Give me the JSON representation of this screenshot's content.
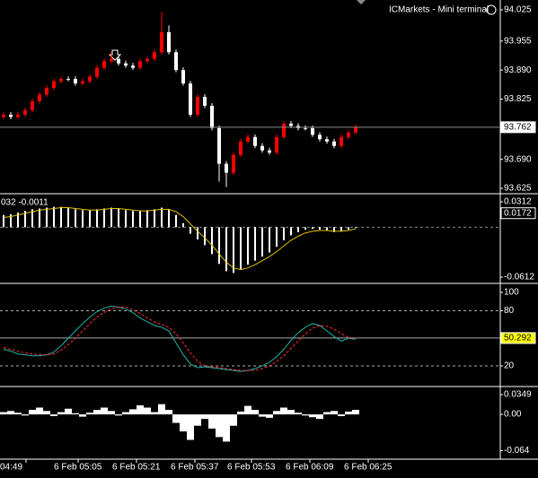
{
  "header": {
    "title": "ICMarkets - Mini terminal"
  },
  "x_labels": [
    "04:49",
    "6 Feb 05:05",
    "6 Feb 05:21",
    "6 Feb 05:37",
    "6 Feb 05:53",
    "6 Feb 06:09",
    "6 Feb 06:25"
  ],
  "chart_data": [
    {
      "type": "candlestick",
      "ylim": [
        93.615,
        94.047
      ],
      "yticks": [
        94.025,
        93.955,
        {
          "value": 93.89,
          "label": "93.890"
        },
        93.825,
        {
          "value": 93.69,
          "label": "93.690"
        },
        93.625
      ],
      "last_price": 93.762,
      "up_color": "#ff0000",
      "down_color": "#ffffff",
      "ohlc": [
        [
          93.785,
          93.796,
          93.78,
          93.79
        ],
        [
          93.79,
          93.796,
          93.78,
          93.785
        ],
        [
          93.785,
          93.796,
          93.78,
          93.79
        ],
        [
          93.79,
          93.806,
          93.785,
          93.8
        ],
        [
          93.8,
          93.826,
          93.795,
          93.82
        ],
        [
          93.82,
          93.841,
          93.815,
          93.835
        ],
        [
          93.835,
          93.856,
          93.83,
          93.85
        ],
        [
          93.85,
          93.871,
          93.845,
          93.865
        ],
        [
          93.865,
          93.876,
          93.86,
          93.87
        ],
        [
          93.87,
          93.876,
          93.865,
          93.87
        ],
        [
          93.87,
          93.876,
          93.855,
          93.86
        ],
        [
          93.86,
          93.871,
          93.855,
          93.865
        ],
        [
          93.865,
          93.881,
          93.86,
          93.875
        ],
        [
          93.875,
          93.901,
          93.87,
          93.895
        ],
        [
          93.895,
          93.916,
          93.89,
          93.91
        ],
        [
          93.91,
          93.93,
          93.905,
          93.915
        ],
        [
          93.915,
          93.921,
          93.9,
          93.905
        ],
        [
          93.905,
          93.911,
          93.895,
          93.9
        ],
        [
          93.9,
          93.906,
          93.89,
          93.895
        ],
        [
          93.895,
          93.916,
          93.89,
          93.91
        ],
        [
          93.91,
          93.921,
          93.905,
          93.915
        ],
        [
          93.915,
          93.936,
          93.91,
          93.93
        ],
        [
          93.93,
          94.02,
          93.925,
          93.975
        ],
        [
          93.975,
          93.99,
          93.925,
          93.93
        ],
        [
          93.93,
          93.936,
          93.885,
          93.89
        ],
        [
          93.89,
          93.896,
          93.855,
          93.86
        ],
        [
          93.86,
          93.866,
          93.785,
          93.79
        ],
        [
          93.79,
          93.836,
          93.785,
          93.83
        ],
        [
          93.83,
          93.836,
          93.805,
          93.81
        ],
        [
          93.81,
          93.816,
          93.755,
          93.76
        ],
        [
          93.76,
          93.766,
          93.64,
          93.68
        ],
        [
          93.68,
          93.686,
          93.628,
          93.66
        ],
        [
          93.66,
          93.706,
          93.655,
          93.7
        ],
        [
          93.7,
          93.736,
          93.695,
          93.73
        ],
        [
          93.73,
          93.746,
          93.725,
          93.74
        ],
        [
          93.74,
          93.746,
          93.715,
          93.72
        ],
        [
          93.72,
          93.726,
          93.705,
          93.71
        ],
        [
          93.71,
          93.716,
          93.7,
          93.705
        ],
        [
          93.705,
          93.746,
          93.7,
          93.74
        ],
        [
          93.74,
          93.776,
          93.735,
          93.77
        ],
        [
          93.77,
          93.776,
          93.76,
          93.765
        ],
        [
          93.765,
          93.771,
          93.755,
          93.76
        ],
        [
          93.76,
          93.766,
          93.755,
          93.76
        ],
        [
          93.76,
          93.766,
          93.74,
          93.745
        ],
        [
          93.745,
          93.751,
          93.73,
          93.735
        ],
        [
          93.735,
          93.741,
          93.725,
          93.73
        ],
        [
          93.73,
          93.736,
          93.715,
          93.72
        ],
        [
          93.72,
          93.746,
          93.715,
          93.74
        ],
        [
          93.74,
          93.756,
          93.735,
          93.75
        ],
        [
          93.75,
          93.768,
          93.745,
          93.762
        ]
      ]
    },
    {
      "type": "macd",
      "label": "032 -0.0011",
      "ylim": [
        -0.0678,
        0.0389
      ],
      "yticks": [
        0.0312,
        -0.0612
      ],
      "current": 0.0172,
      "series": [
        {
          "color": "#ffffff",
          "values": [
            0.015,
            0.016,
            0.018,
            0.02,
            0.022,
            0.023,
            0.024,
            0.025,
            0.025,
            0.024,
            0.022,
            0.021,
            0.021,
            0.022,
            0.023,
            0.024,
            0.023,
            0.021,
            0.02,
            0.02,
            0.021,
            0.022,
            0.024,
            0.022,
            0.015,
            0.005,
            -0.008,
            -0.015,
            -0.022,
            -0.033,
            -0.045,
            -0.054,
            -0.056,
            -0.052,
            -0.046,
            -0.041,
            -0.036,
            -0.031,
            -0.024,
            -0.016,
            -0.01,
            -0.006,
            -0.003,
            -0.002,
            -0.003,
            -0.004,
            -0.006,
            -0.005,
            -0.003,
            -0.001
          ]
        },
        {
          "color": "#e0c000",
          "values": [
            0.012,
            0.013,
            0.015,
            0.017,
            0.019,
            0.021,
            0.022,
            0.023,
            0.024,
            0.024,
            0.023,
            0.022,
            0.021,
            0.021,
            0.022,
            0.023,
            0.023,
            0.022,
            0.021,
            0.02,
            0.02,
            0.021,
            0.022,
            0.022,
            0.019,
            0.013,
            0.004,
            -0.005,
            -0.013,
            -0.022,
            -0.033,
            -0.043,
            -0.05,
            -0.052,
            -0.05,
            -0.046,
            -0.041,
            -0.036,
            -0.03,
            -0.023,
            -0.016,
            -0.011,
            -0.007,
            -0.005,
            -0.004,
            -0.004,
            -0.005,
            -0.005,
            -0.004,
            -0.002
          ]
        }
      ]
    },
    {
      "type": "line",
      "ylim": [
        -1.5,
        107.8
      ],
      "yticks": [
        100,
        80,
        20
      ],
      "levels": [
        80,
        20
      ],
      "current": 50.292,
      "series": [
        {
          "color": "#20b2aa",
          "values": [
            38,
            36,
            33,
            32,
            31,
            31,
            32,
            35,
            42,
            50,
            58,
            66,
            73,
            79,
            83,
            85,
            84,
            82,
            78,
            72,
            68,
            64,
            62,
            58,
            45,
            32,
            22,
            18,
            19,
            18,
            17,
            16,
            15,
            14,
            15,
            17,
            20,
            24,
            30,
            38,
            48,
            56,
            62,
            66,
            64,
            58,
            52,
            47,
            50,
            49
          ]
        },
        {
          "color": "#ff3030",
          "dashed": true,
          "values": [
            40,
            38,
            36,
            34,
            33,
            32,
            32,
            33,
            37,
            43,
            50,
            58,
            66,
            73,
            78,
            82,
            84,
            84,
            81,
            77,
            72,
            68,
            65,
            62,
            55,
            45,
            34,
            25,
            20,
            19,
            18,
            17,
            16,
            15,
            15,
            15,
            17,
            20,
            25,
            31,
            39,
            47,
            55,
            61,
            64,
            63,
            60,
            55,
            51,
            50
          ]
        }
      ]
    },
    {
      "type": "bar",
      "ylim": [
        -0.079,
        0.046
      ],
      "yticks": [
        0.0349,
        {
          "value": 0,
          "label": "0.00"
        },
        -0.064
      ],
      "color": "#ffffff",
      "values": [
        0.004,
        0.006,
        0.003,
        -0.002,
        0.008,
        0.012,
        0.006,
        -0.003,
        0.004,
        0.01,
        0.002,
        -0.004,
        0.003,
        0.008,
        0.012,
        0.006,
        -0.002,
        0.004,
        0.009,
        0.016,
        0.012,
        0.004,
        0.018,
        0.008,
        -0.015,
        -0.03,
        -0.045,
        -0.02,
        -0.008,
        -0.025,
        -0.04,
        -0.048,
        -0.02,
        0.005,
        0.015,
        0.008,
        -0.004,
        -0.006,
        0.006,
        0.012,
        0.008,
        0.003,
        -0.002,
        -0.005,
        -0.008,
        0.004,
        0.006,
        -0.003,
        0.005,
        0.008
      ]
    }
  ]
}
